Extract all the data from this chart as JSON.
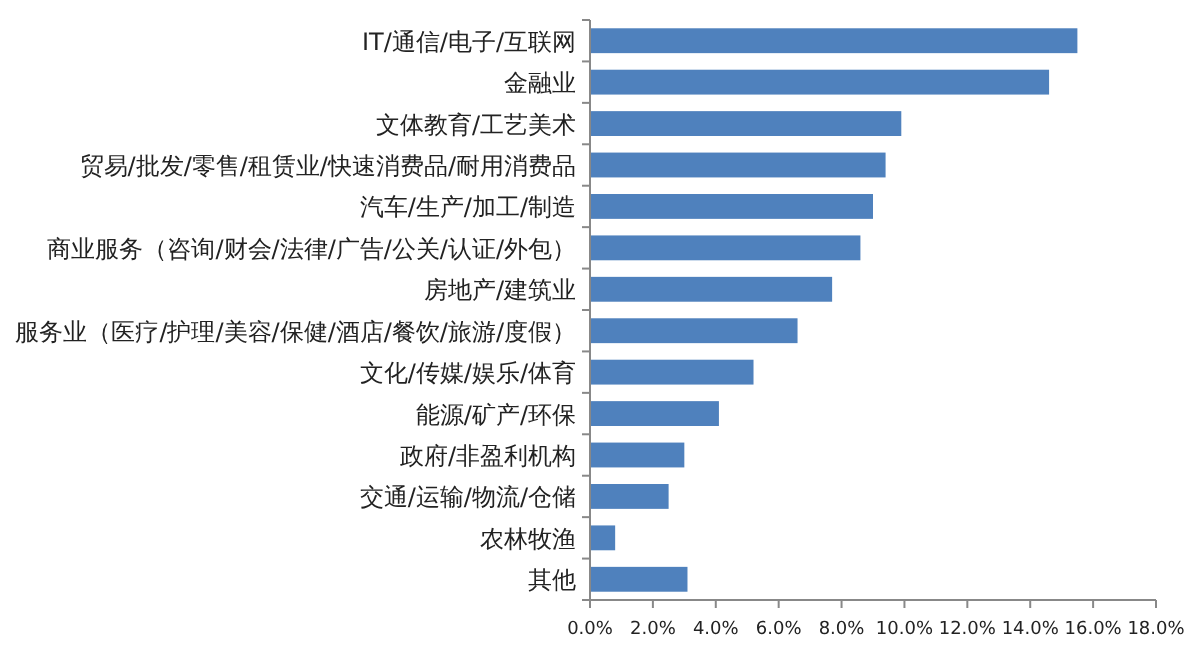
{
  "chart_data": {
    "type": "bar",
    "orientation": "horizontal",
    "categories": [
      "IT/通信/电子/互联网",
      "金融业",
      "文体教育/工艺美术",
      "贸易/批发/零售/租赁业/快速消费品/耐用消费品",
      "汽车/生产/加工/制造",
      "商业服务（咨询/财会/法律/广告/公关/认证/外包）",
      "房地产/建筑业",
      "服务业（医疗/护理/美容/保健/酒店/餐饮/旅游/度假）",
      "文化/传媒/娱乐/体育",
      "能源/矿产/环保",
      "政府/非盈利机构",
      "交通/运输/物流/仓储",
      "农林牧渔",
      "其他"
    ],
    "values": [
      15.5,
      14.6,
      9.9,
      9.4,
      9.0,
      8.6,
      7.7,
      6.6,
      5.2,
      4.1,
      3.0,
      2.5,
      0.8,
      3.1
    ],
    "color": "#4f81bd",
    "xlim": [
      0,
      18
    ],
    "xticks": [
      {
        "value": 0,
        "label": "0.0%"
      },
      {
        "value": 2,
        "label": "2.0%"
      },
      {
        "value": 4,
        "label": "4.0%"
      },
      {
        "value": 6,
        "label": "6.0%"
      },
      {
        "value": 8,
        "label": "8.0%"
      },
      {
        "value": 10,
        "label": "10.0%"
      },
      {
        "value": 12,
        "label": "12.0%"
      },
      {
        "value": 14,
        "label": "14.0%"
      },
      {
        "value": 16,
        "label": "16.0%"
      },
      {
        "value": 18,
        "label": "18.0%"
      }
    ]
  }
}
